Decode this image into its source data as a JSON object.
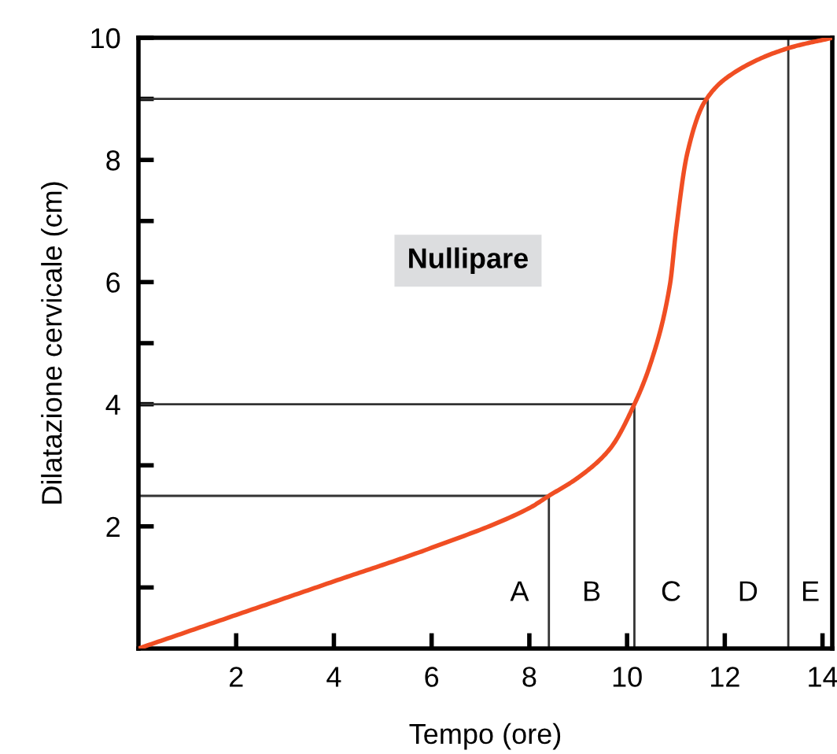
{
  "chart_data": {
    "type": "line",
    "xlabel": "Tempo (ore)",
    "ylabel": "Dilatazione cervicale (cm)",
    "xlim": [
      0,
      14.2
    ],
    "ylim": [
      0,
      10
    ],
    "xticks": [
      2,
      4,
      6,
      8,
      10,
      12,
      14
    ],
    "yticks": [
      {
        "value": 1,
        "label": null
      },
      2,
      {
        "value": 3,
        "label": null
      },
      4,
      {
        "value": 5,
        "label": null
      },
      6,
      {
        "value": 7,
        "label": null
      },
      8,
      {
        "value": 9,
        "label": null
      },
      10
    ],
    "grid": false,
    "legend": false,
    "series": [
      {
        "color": "#f04e23",
        "x": [
          0,
          2,
          4,
          6,
          8,
          8.4,
          9,
          9.65,
          10.15,
          10.49,
          10.88,
          11.0,
          11.23,
          11.58,
          12.1,
          13.3,
          14.2
        ],
        "values": [
          0,
          0.55,
          1.1,
          1.65,
          2.3,
          2.5,
          2.8,
          3.27,
          4,
          4.69,
          5.97,
          6.83,
          8.1,
          8.94,
          9.38,
          9.83,
          10
        ]
      },
      {
        "color": "#333333",
        "x": [
          0,
          8.4,
          8.4
        ],
        "values": [
          2.5,
          2.5,
          0
        ]
      },
      {
        "color": "#333333",
        "x": [
          0,
          10.15,
          10.15
        ],
        "values": [
          4,
          4,
          0
        ]
      },
      {
        "color": "#333333",
        "x": [
          0,
          11.65,
          11.65
        ],
        "values": [
          9,
          9,
          0
        ]
      }
    ],
    "ref_lines": [
      {
        "axis": "x",
        "value": 13.3,
        "color": "#333333"
      }
    ],
    "annotations": [
      "Nullipare",
      "A",
      "B",
      "C",
      "D",
      "E"
    ]
  }
}
